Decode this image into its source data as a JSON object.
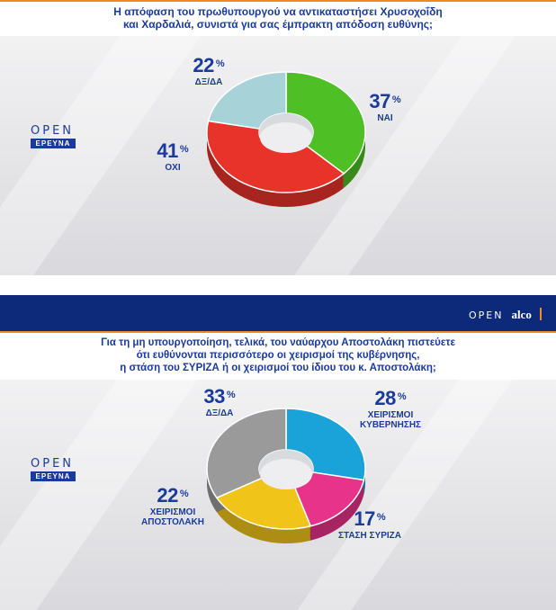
{
  "colors": {
    "accent_blue": "#1a3b9c",
    "header_blue": "#0d2a7a",
    "orange": "#f08a24",
    "nai": "#4fbf26",
    "oxi": "#e8332b",
    "dxda1": "#a7d3d8",
    "kyvernisis": "#1aa3d8",
    "syriza": "#e8338a",
    "apostolaki": "#f0c419",
    "dxda2": "#9a9a9a"
  },
  "panel1": {
    "title_line1": "Η απόφαση του πρωθυπουργού να αντικαταστήσει Χρυσοχοΐδη",
    "title_line2": "και Χαρδαλιά, συνιστά για σας έμπρακτη απόδοση ευθύνης;",
    "logo_word": "OPEN",
    "logo_badge": "ΕΡΕΥΝΑ"
  },
  "panel2": {
    "title_line1": "Για τη μη υπουργοποίηση, τελικά, του ναύαρχου Αποστολάκη πιστεύετε",
    "title_line2": "ότι ευθύνονται περισσότερο οι χειρισμοί της κυβέρνησης,",
    "title_line3": "η στάση του ΣΥΡΙΖΑ ή οι χειρισμοί του ίδιου του κ. Αποστολάκη;",
    "logo_word": "OPEN",
    "logo_badge": "ΕΡΕΥΝΑ",
    "brand_open": "OPEN",
    "brand_alco": "alco"
  },
  "chart_data": [
    {
      "type": "pie",
      "donut": true,
      "title": "Η απόφαση του πρωθυπουργού να αντικαταστήσει Χρυσοχοΐδη και Χαρδαλιά, συνιστά για σας έμπρακτη απόδοση ευθύνης;",
      "unit": "%",
      "categories": [
        "ΝΑΙ",
        "ΟΧΙ",
        "ΔΞ/ΔΑ"
      ],
      "values": [
        37,
        41,
        22
      ],
      "colors": [
        "#4fbf26",
        "#e8332b",
        "#a7d3d8"
      ]
    },
    {
      "type": "pie",
      "donut": true,
      "title": "Για τη μη υπουργοποίηση, τελικά, του ναύαρχου Αποστολάκη πιστεύετε ότι ευθύνονται περισσότερο οι χειρισμοί της κυβέρνησης, η στάση του ΣΥΡΙΖΑ ή οι χειρισμοί του ίδιου του κ. Αποστολάκη;",
      "unit": "%",
      "categories": [
        "ΧΕΙΡΙΣΜΟΙ ΚΥΒΕΡΝΗΣΗΣ",
        "ΣΤΑΣΗ ΣΥΡΙΖΑ",
        "ΧΕΙΡΙΣΜΟΙ ΑΠΟΣΤΟΛΑΚΗ",
        "ΔΞ/ΔΑ"
      ],
      "values": [
        28,
        17,
        22,
        33
      ],
      "colors": [
        "#1aa3d8",
        "#e8338a",
        "#f0c419",
        "#9a9a9a"
      ]
    }
  ],
  "labels1": [
    {
      "value": "37",
      "unit": "%",
      "name_lines": [
        "ΝΑΙ"
      ]
    },
    {
      "value": "41",
      "unit": "%",
      "name_lines": [
        "ΟΧΙ"
      ]
    },
    {
      "value": "22",
      "unit": "%",
      "name_lines": [
        "ΔΞ/ΔΑ"
      ]
    }
  ],
  "labels2": [
    {
      "value": "28",
      "unit": "%",
      "name_lines": [
        "ΧΕΙΡΙΣΜΟΙ",
        "ΚΥΒΕΡΝΗΣΗΣ"
      ]
    },
    {
      "value": "17",
      "unit": "%",
      "name_lines": [
        "ΣΤΑΣΗ ΣΥΡΙΖΑ"
      ]
    },
    {
      "value": "22",
      "unit": "%",
      "name_lines": [
        "ΧΕΙΡΙΣΜΟΙ",
        "ΑΠΟΣΤΟΛΑΚΗ"
      ]
    },
    {
      "value": "33",
      "unit": "%",
      "name_lines": [
        "ΔΞ/ΔΑ"
      ]
    }
  ]
}
